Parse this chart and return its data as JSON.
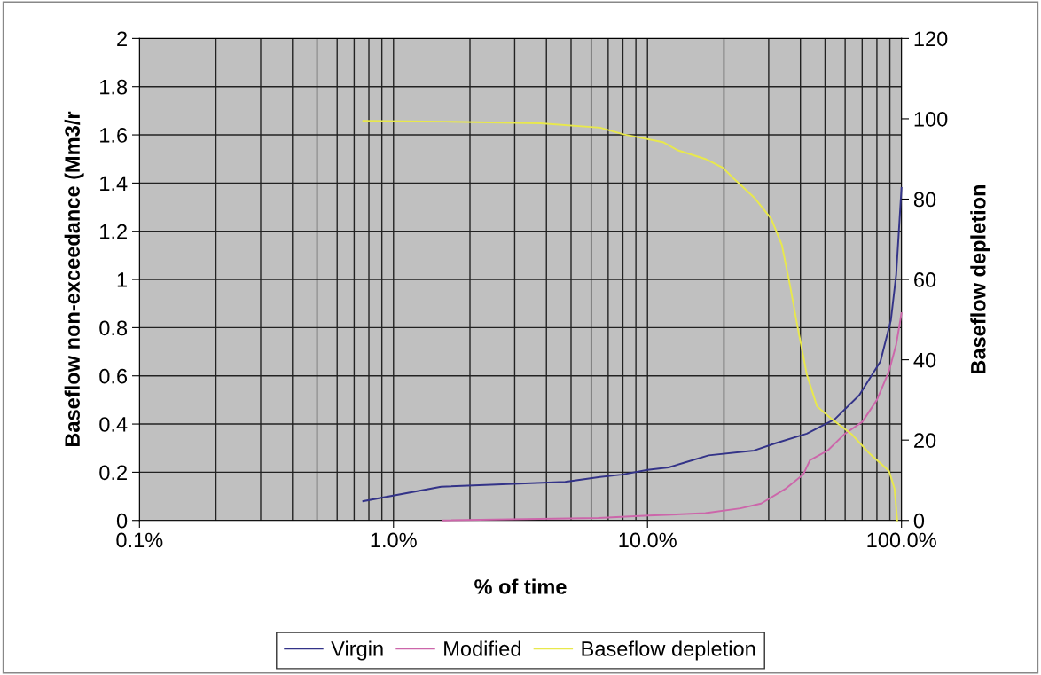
{
  "chart_data": {
    "type": "line",
    "xlabel": "% of time",
    "ylabel": "Baseflow non-exceedance (Mm3/r",
    "y2label": "Baseflow depletion",
    "log": "x",
    "grid": true,
    "legend": "bottom",
    "marker": "none",
    "line_style": "solid",
    "xlim": [
      0.1,
      100
    ],
    "xticks": [
      {
        "value": 0.1,
        "label": "0.1%"
      },
      {
        "value": 1,
        "label": "1.0%"
      },
      {
        "value": 10,
        "label": "10.0%"
      },
      {
        "value": 100,
        "label": "100.0%"
      }
    ],
    "ylim": [
      0,
      2
    ],
    "yticks": [
      0,
      0.2,
      0.4,
      0.6,
      0.8,
      1,
      1.2,
      1.4,
      1.6,
      1.8,
      2
    ],
    "y2lim": [
      0,
      120
    ],
    "y2ticks": [
      0,
      20,
      40,
      60,
      80,
      100,
      120
    ],
    "series": [
      {
        "name": "Virgin",
        "color": "#333388",
        "x": [
          0.76,
          1.54,
          4.74,
          6.5,
          7.9,
          10,
          12.1,
          14,
          17.4,
          26.3,
          31.9,
          42.4,
          54.6,
          68.2,
          82.6,
          90.8,
          95.3,
          100
        ],
        "values": [
          0.08,
          0.14,
          0.16,
          0.18,
          0.19,
          0.21,
          0.22,
          0.24,
          0.27,
          0.29,
          0.32,
          0.36,
          0.42,
          0.52,
          0.66,
          0.83,
          1.02,
          1.38
        ]
      },
      {
        "name": "Modified",
        "color": "#cc66aa",
        "x": [
          1.56,
          6.4,
          10.1,
          16.9,
          23.2,
          28,
          34.8,
          41,
          43.6,
          51.2,
          59.9,
          70.2,
          80,
          89.3,
          95.3,
          100
        ],
        "values": [
          0.0,
          0.01,
          0.02,
          0.03,
          0.05,
          0.07,
          0.13,
          0.19,
          0.25,
          0.29,
          0.36,
          0.41,
          0.5,
          0.62,
          0.73,
          0.86
        ]
      },
      {
        "name": "Baseflow depletion",
        "color": "#e8e84c",
        "axis": "y2",
        "x": [
          0.76,
          1.61,
          3.79,
          6.5,
          8.1,
          11.5,
          13.1,
          16.9,
          19.8,
          21.8,
          26.3,
          30.7,
          33.8,
          36.4,
          39,
          42.4,
          46.5,
          52.8,
          63.8,
          75,
          89.3,
          93.9,
          96.2
        ],
        "values": [
          99.5,
          99.3,
          98.9,
          97.8,
          96.1,
          94.2,
          92.2,
          90,
          87.8,
          85.2,
          80.4,
          75.1,
          68.6,
          58.5,
          48.1,
          36.3,
          28.4,
          25.4,
          21.4,
          16.6,
          12.3,
          7.9,
          0
        ]
      }
    ]
  }
}
